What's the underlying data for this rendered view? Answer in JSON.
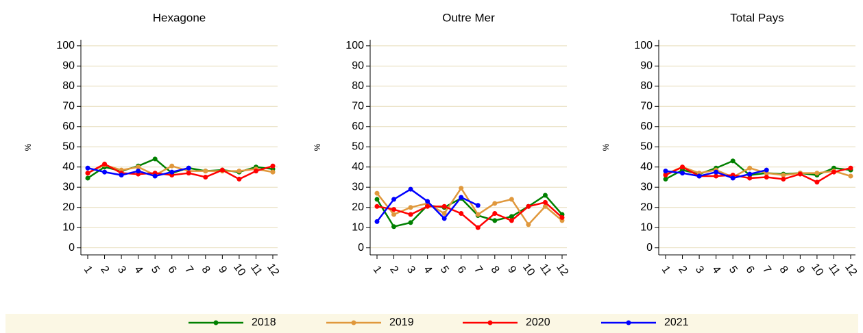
{
  "chart_data": [
    {
      "type": "line",
      "title": "Hexagone",
      "y_label": "%",
      "categories": [
        "1",
        "2",
        "3",
        "4",
        "5",
        "6",
        "7",
        "8",
        "9",
        "10",
        "11",
        "12"
      ],
      "ylim": [
        -3.5,
        103
      ],
      "yticks": [
        0,
        10,
        20,
        30,
        40,
        50,
        60,
        70,
        80,
        90,
        100
      ],
      "grid": true,
      "series": [
        {
          "name": "2018",
          "color": "#008000",
          "values": [
            34.5,
            40,
            38,
            40.5,
            44,
            37,
            39.5,
            38,
            38.5,
            37.5,
            40,
            39
          ]
        },
        {
          "name": "2019",
          "color": "#e0983c",
          "values": [
            37,
            41,
            38.5,
            40,
            36,
            40.5,
            38,
            38,
            38,
            38,
            39,
            37.5
          ]
        },
        {
          "name": "2020",
          "color": "#ff0000",
          "values": [
            37,
            41.5,
            37,
            36.5,
            37,
            36,
            37,
            35,
            38.5,
            34,
            38,
            40.5
          ]
        },
        {
          "name": "2021",
          "color": "#0000ff",
          "values": [
            39.5,
            37.5,
            36,
            38,
            35.5,
            37.5,
            39.5,
            null,
            null,
            null,
            null,
            null
          ]
        }
      ]
    },
    {
      "type": "line",
      "title": "Outre Mer",
      "y_label": "%",
      "categories": [
        "1",
        "2",
        "3",
        "4",
        "5",
        "6",
        "7",
        "8",
        "9",
        "10",
        "11",
        "12"
      ],
      "ylim": [
        -3.5,
        103
      ],
      "yticks": [
        0,
        10,
        20,
        30,
        40,
        50,
        60,
        70,
        80,
        90,
        100
      ],
      "grid": true,
      "series": [
        {
          "name": "2018",
          "color": "#008000",
          "values": [
            24,
            10.5,
            12.5,
            21,
            20,
            24.5,
            16,
            13.5,
            15.5,
            20.5,
            26,
            16.5
          ]
        },
        {
          "name": "2019",
          "color": "#e0983c",
          "values": [
            27,
            16.5,
            20,
            22,
            17,
            29.5,
            16.5,
            22,
            24,
            11.5,
            20.5,
            13.5
          ]
        },
        {
          "name": "2020",
          "color": "#ff0000",
          "values": [
            20.5,
            19,
            16.5,
            20.5,
            20.5,
            17,
            10,
            17,
            13.5,
            20.5,
            22.5,
            15
          ]
        },
        {
          "name": "2021",
          "color": "#0000ff",
          "values": [
            13,
            24,
            29,
            23,
            14.5,
            25,
            21,
            null,
            null,
            null,
            null,
            null
          ]
        }
      ]
    },
    {
      "type": "line",
      "title": "Total Pays",
      "y_label": "%",
      "categories": [
        "1",
        "2",
        "3",
        "4",
        "5",
        "6",
        "7",
        "8",
        "9",
        "10",
        "11",
        "12"
      ],
      "ylim": [
        -3.5,
        103
      ],
      "yticks": [
        0,
        10,
        20,
        30,
        40,
        50,
        60,
        70,
        80,
        90,
        100
      ],
      "grid": true,
      "series": [
        {
          "name": "2018",
          "color": "#008000",
          "values": [
            34,
            38.5,
            36.5,
            39.5,
            43,
            36,
            37,
            36.5,
            37,
            36,
            39.5,
            38.5
          ]
        },
        {
          "name": "2019",
          "color": "#e0983c",
          "values": [
            36.5,
            40,
            37,
            38.5,
            35,
            39.5,
            37,
            36,
            37,
            37,
            38,
            35.5
          ]
        },
        {
          "name": "2020",
          "color": "#ff0000",
          "values": [
            36,
            40,
            35.5,
            35.5,
            36,
            34.5,
            35,
            34,
            36.5,
            32.5,
            37.5,
            39.5
          ]
        },
        {
          "name": "2021",
          "color": "#0000ff",
          "values": [
            38,
            37,
            35.5,
            37.5,
            34.5,
            36.5,
            38.5,
            null,
            null,
            null,
            null,
            null
          ]
        }
      ]
    }
  ]
}
